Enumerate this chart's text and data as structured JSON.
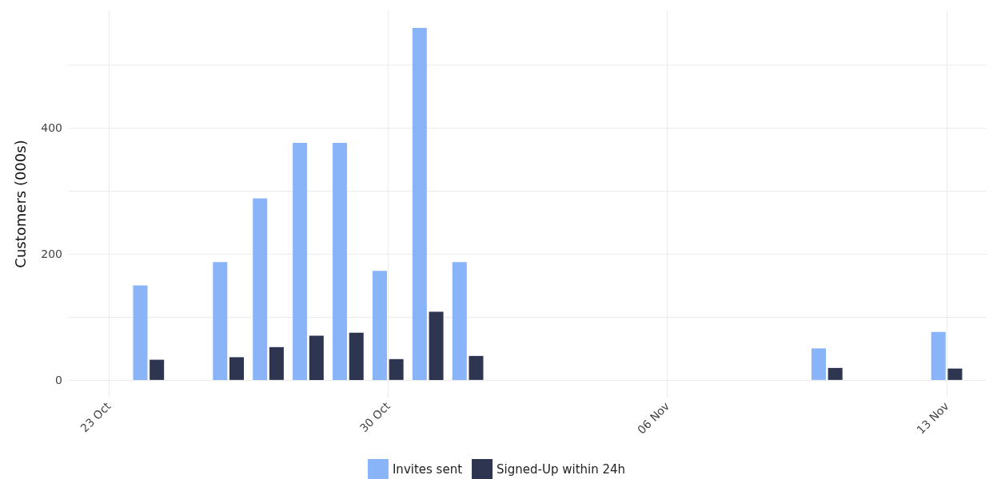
{
  "chart_data": {
    "type": "bar",
    "ylabel": "Customers (000s)",
    "x": [
      "--10-24",
      "--10-26",
      "--10-27",
      "--10-28",
      "--10-29",
      "--10-30",
      "--10-31",
      "--11-01",
      "--11-10",
      "--11-13"
    ],
    "series": [
      {
        "name": "Invites sent",
        "color": "#8ab4f8",
        "values": [
          150,
          187,
          288,
          376,
          376,
          173,
          558,
          187,
          50,
          76
        ]
      },
      {
        "name": "Signed-Up within 24h",
        "color": "#2d3550",
        "values": [
          32,
          36,
          52,
          70,
          75,
          33,
          108,
          38,
          19,
          18
        ]
      }
    ],
    "xlim": [
      "--10-22",
      "--11-14"
    ],
    "xticks": [
      {
        "value": "--10-23",
        "label": "23 Oct"
      },
      {
        "value": "--10-30",
        "label": "30 Oct"
      },
      {
        "value": "--11-06",
        "label": "06 Nov"
      },
      {
        "value": "--11-13",
        "label": "13 Nov"
      }
    ],
    "ylim": [
      -28,
      586
    ],
    "yticks": [
      0,
      {
        "value": 100,
        "label": null
      },
      200,
      {
        "value": 300,
        "label": null
      },
      400,
      {
        "value": 500,
        "label": null
      }
    ],
    "grid": true,
    "legend": "bottom"
  }
}
